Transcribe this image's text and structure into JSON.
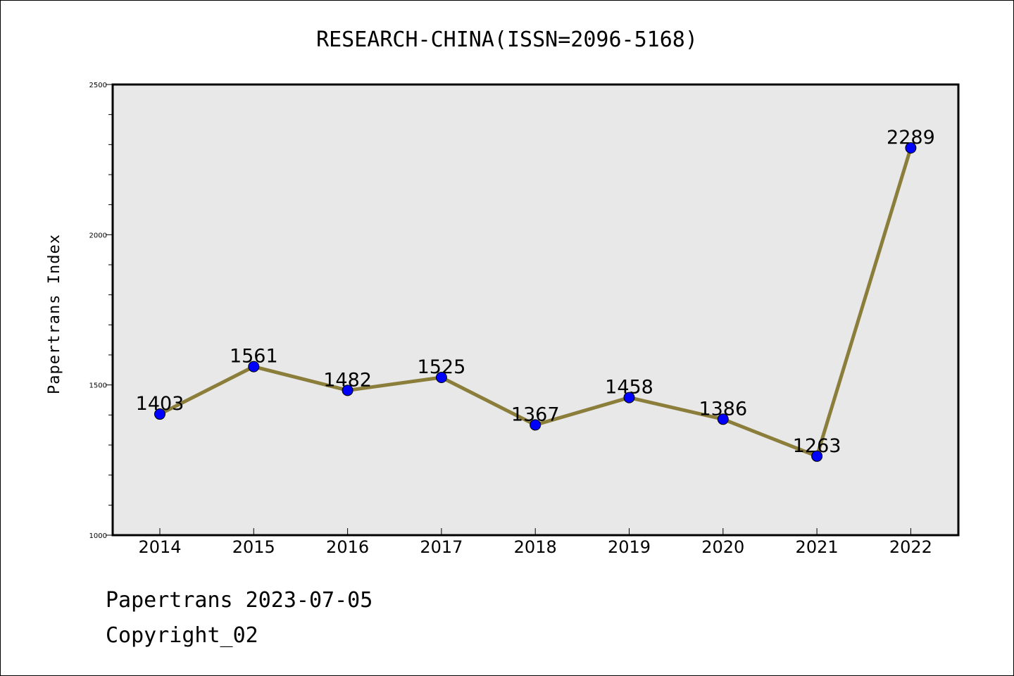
{
  "chart_data": {
    "type": "line",
    "title": "RESEARCH-CHINA(ISSN=2096-5168)",
    "xlabel": "",
    "ylabel": "Papertrans Index",
    "ylim": [
      1000,
      2500
    ],
    "y_major_ticks": [
      1000,
      1500,
      2000,
      2500
    ],
    "y_minor_step": 100,
    "categories": [
      "2014",
      "2015",
      "2016",
      "2017",
      "2018",
      "2019",
      "2020",
      "2021",
      "2022"
    ],
    "series": [
      {
        "values": [
          1403,
          1561,
          1482,
          1525,
          1367,
          1458,
          1386,
          1263,
          2289
        ],
        "line_color": "#8b7d3a",
        "marker_color": "#0000ff"
      }
    ],
    "background_color": "#e8e8e8",
    "grid": false,
    "legend": "none"
  },
  "footer": {
    "line1": "Papertrans 2023-07-05",
    "line2": "Copyright_02"
  }
}
